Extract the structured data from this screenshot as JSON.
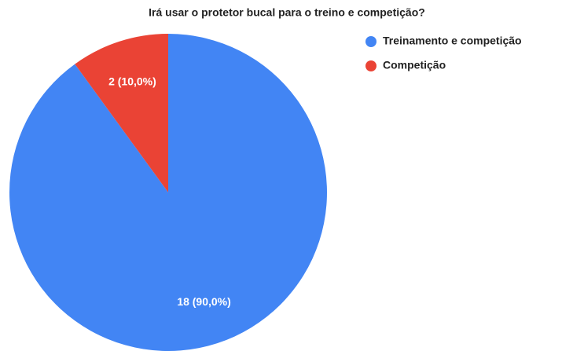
{
  "chart_data": {
    "type": "pie",
    "title": "Irá usar o protetor bucal para o treino e competição?",
    "categories": [
      "Treinamento e competição",
      "Competição"
    ],
    "values": [
      18,
      2
    ],
    "value_labels": [
      "18 (90,0%)",
      "2 (10,0%)"
    ],
    "colors": [
      "#4285f4",
      "#ea4335"
    ],
    "legend": "right"
  }
}
